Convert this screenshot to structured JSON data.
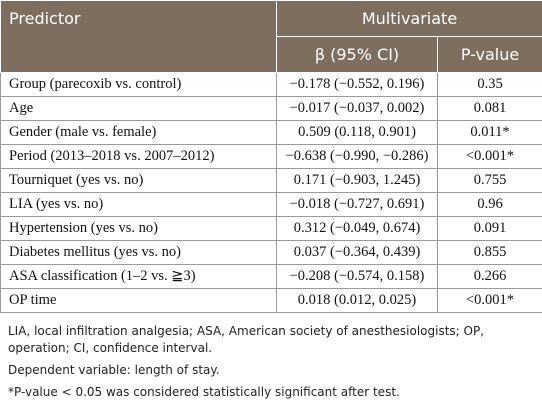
{
  "table": {
    "header": [
      "Predictor",
      "Multivariate",
      "β (95% CI)",
      "P-value"
    ],
    "rows": [
      [
        "Group (parecoxib vs. control)",
        "−0.178 (−0.552, 0.196)",
        "0.35"
      ],
      [
        "Age",
        "−0.017 (−0.037, 0.002)",
        "0.081"
      ],
      [
        "Gender (male vs. female)",
        "0.509 (0.118, 0.901)",
        "0.011*"
      ],
      [
        "Period (2013–2018 vs. 2007–2012)",
        "−0.638 (−0.990, −0.286)",
        "<0.001*"
      ],
      [
        "Tourniquet (yes vs. no)",
        "0.171 (−0.903, 1.245)",
        "0.755"
      ],
      [
        "LIA (yes vs. no)",
        "−0.018 (−0.727, 0.691)",
        "0.96"
      ],
      [
        "Hypertension (yes vs. no)",
        "0.312 (−0.049, 0.674)",
        "0.091"
      ],
      [
        "Diabetes mellitus (yes vs. no)",
        "0.037 (−0.364, 0.439)",
        "0.855"
      ],
      [
        "ASA classification (1–2 vs. ≧3)",
        "−0.208 (−0.574, 0.158)",
        "0.266"
      ],
      [
        "OP time",
        "0.018 (0.012, 0.025)",
        "<0.001*"
      ]
    ],
    "footnotes": [
      "LIA, local infiltration analgesia; ASA, American society of anesthesiologists; OP, operation; CI, confidence interval.",
      "Dependent variable: length of stay.",
      "*P-value < 0.05 was considered statistically significant after test."
    ]
  }
}
